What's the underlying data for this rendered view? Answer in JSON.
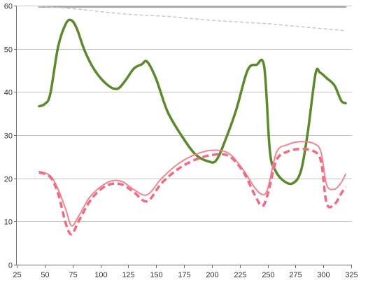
{
  "chart_data": {
    "type": "line",
    "title": "",
    "xlabel": "",
    "ylabel": "",
    "xlim": [
      25,
      325
    ],
    "ylim": [
      0,
      60
    ],
    "x_ticks": [
      "25",
      "50",
      "75",
      "100",
      "125",
      "150",
      "175",
      "200",
      "225",
      "250",
      "275",
      "300",
      "325"
    ],
    "y_ticks": [
      "0",
      "10",
      "20",
      "30",
      "40",
      "50",
      "60"
    ],
    "grid": "horizontal",
    "legend": "none",
    "series": [
      {
        "color": "#a8a8a8",
        "style": "solid",
        "width": 2.5,
        "x": [
          45,
          320
        ],
        "y": [
          59.7,
          59.7
        ]
      },
      {
        "color": "#c8c8c8",
        "style": "dashed",
        "width": 1.5,
        "x": [
          45,
          75,
          100,
          130,
          160,
          200,
          250,
          280,
          320
        ],
        "y": [
          59.8,
          59.3,
          58.6,
          57.9,
          57.5,
          56.6,
          55.8,
          55.1,
          54.2
        ]
      },
      {
        "color": "#5a8a2c",
        "style": "solid",
        "width": 3.5,
        "x": [
          45,
          50,
          55,
          62,
          69,
          74,
          79,
          86,
          95,
          106,
          115,
          122,
          130,
          137,
          142,
          150,
          160,
          172,
          185,
          197,
          204,
          212,
          222,
          232,
          240,
          247,
          252,
          257,
          265,
          273,
          280,
          286,
          293,
          297,
          303,
          310,
          316,
          320
        ],
        "y": [
          36.7,
          37.2,
          39.5,
          50.4,
          55.8,
          56.6,
          54.6,
          49.5,
          45.0,
          41.7,
          40.7,
          42.5,
          45.4,
          46.4,
          47.0,
          43.0,
          35.6,
          30.2,
          25.6,
          23.9,
          24.2,
          28.8,
          36.0,
          45.0,
          46.3,
          45.8,
          26.4,
          21.8,
          19.3,
          18.9,
          21.8,
          30.6,
          44.2,
          44.5,
          43.2,
          41.5,
          38.0,
          37.4
        ]
      },
      {
        "color": "#f08494",
        "style": "solid",
        "width": 2,
        "x": [
          45,
          55,
          62,
          69,
          74,
          80,
          90,
          100,
          110,
          120,
          130,
          142,
          155,
          170,
          185,
          200,
          215,
          228,
          238,
          245,
          250,
          258,
          268,
          280,
          292,
          298,
          303,
          310,
          316,
          320
        ],
        "y": [
          21.6,
          20.6,
          17.5,
          12.8,
          9.0,
          11.0,
          15.5,
          18.0,
          19.4,
          19.2,
          17.4,
          16.2,
          20.0,
          23.4,
          25.5,
          26.5,
          25.8,
          22.0,
          18.0,
          16.3,
          17.5,
          26.0,
          27.8,
          28.5,
          28.0,
          26.0,
          18.5,
          17.5,
          19.0,
          21.0
        ]
      },
      {
        "color": "#f06b80",
        "style": "dashed",
        "width": 3.5,
        "x": [
          45,
          55,
          62,
          69,
          74,
          80,
          90,
          100,
          110,
          120,
          130,
          142,
          155,
          170,
          185,
          200,
          215,
          228,
          238,
          245,
          250,
          258,
          268,
          280,
          292,
          298,
          303,
          310,
          316,
          320
        ],
        "y": [
          21.4,
          20.3,
          16.5,
          9.5,
          7.0,
          9.8,
          14.5,
          17.4,
          18.7,
          18.5,
          16.8,
          14.7,
          18.9,
          22.2,
          24.3,
          25.4,
          25.2,
          21.6,
          16.4,
          13.6,
          16.2,
          24.2,
          26.2,
          26.8,
          26.2,
          23.8,
          14.2,
          14.0,
          16.5,
          18.0
        ]
      }
    ]
  }
}
